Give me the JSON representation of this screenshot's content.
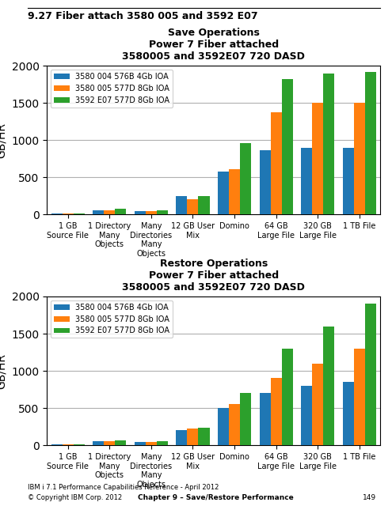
{
  "annotations": [
    "9.27 Fiber attach 3580 005 and 3592 E07",
    "IBM i 7.1 Performance Capabilities Reference - April 2012",
    "© Copyright IBM Corp. 2012",
    "Chapter 9 – Save/Restore Performance",
    "149"
  ],
  "chart_data": [
    {
      "type": "bar",
      "title": "Save Operations\nPower 7 Fiber attached\n3580005 and 3592E07 720 DASD",
      "ylabel": "GB/HR",
      "categories": [
        "1 GB\nSource File",
        "1 Directory\nMany\nObjects",
        "Many\nDirectories\nMany\nObjects",
        "12 GB User\nMix",
        "Domino",
        "64 GB\nLarge File",
        "320 GB\nLarge File",
        "1 TB File"
      ],
      "series": [
        {
          "name": "3580 004 576B 4Gb IOA",
          "values": [
            20,
            60,
            50,
            250,
            580,
            870,
            900,
            900
          ]
        },
        {
          "name": "3580 005 577D 8Gb IOA",
          "values": [
            15,
            60,
            50,
            210,
            610,
            1380,
            1500,
            1500
          ]
        },
        {
          "name": "3592 E07 577D 8Gb IOA",
          "values": [
            15,
            80,
            60,
            250,
            960,
            1820,
            1900,
            1920
          ]
        }
      ],
      "ylim": [
        0,
        2000
      ],
      "yticks": [
        0,
        500,
        1000,
        1500,
        2000
      ],
      "grid": true,
      "legend": "upper left"
    },
    {
      "type": "bar",
      "title": "Restore Operations\nPower 7 Fiber attached\n3580005 and 3592E07 720 DASD",
      "ylabel": "GB/HR",
      "categories": [
        "1 GB\nSource File",
        "1 Directory\nMany\nObjects",
        "Many\nDirectories\nMany\nObjects",
        "12 GB User\nMix",
        "Domino",
        "64 GB\nLarge File",
        "320 GB\nLarge File",
        "1 TB File"
      ],
      "series": [
        {
          "name": "3580 004 576B 4Gb IOA",
          "values": [
            15,
            50,
            40,
            200,
            500,
            700,
            800,
            850
          ]
        },
        {
          "name": "3580 005 577D 8Gb IOA",
          "values": [
            15,
            55,
            45,
            220,
            550,
            900,
            1100,
            1300
          ]
        },
        {
          "name": "3592 E07 577D 8Gb IOA",
          "values": [
            15,
            70,
            55,
            240,
            700,
            1300,
            1600,
            1900
          ]
        }
      ],
      "ylim": [
        0,
        2000
      ],
      "yticks": [
        0,
        500,
        1000,
        1500,
        2000
      ],
      "grid": true,
      "legend": "upper left"
    }
  ]
}
